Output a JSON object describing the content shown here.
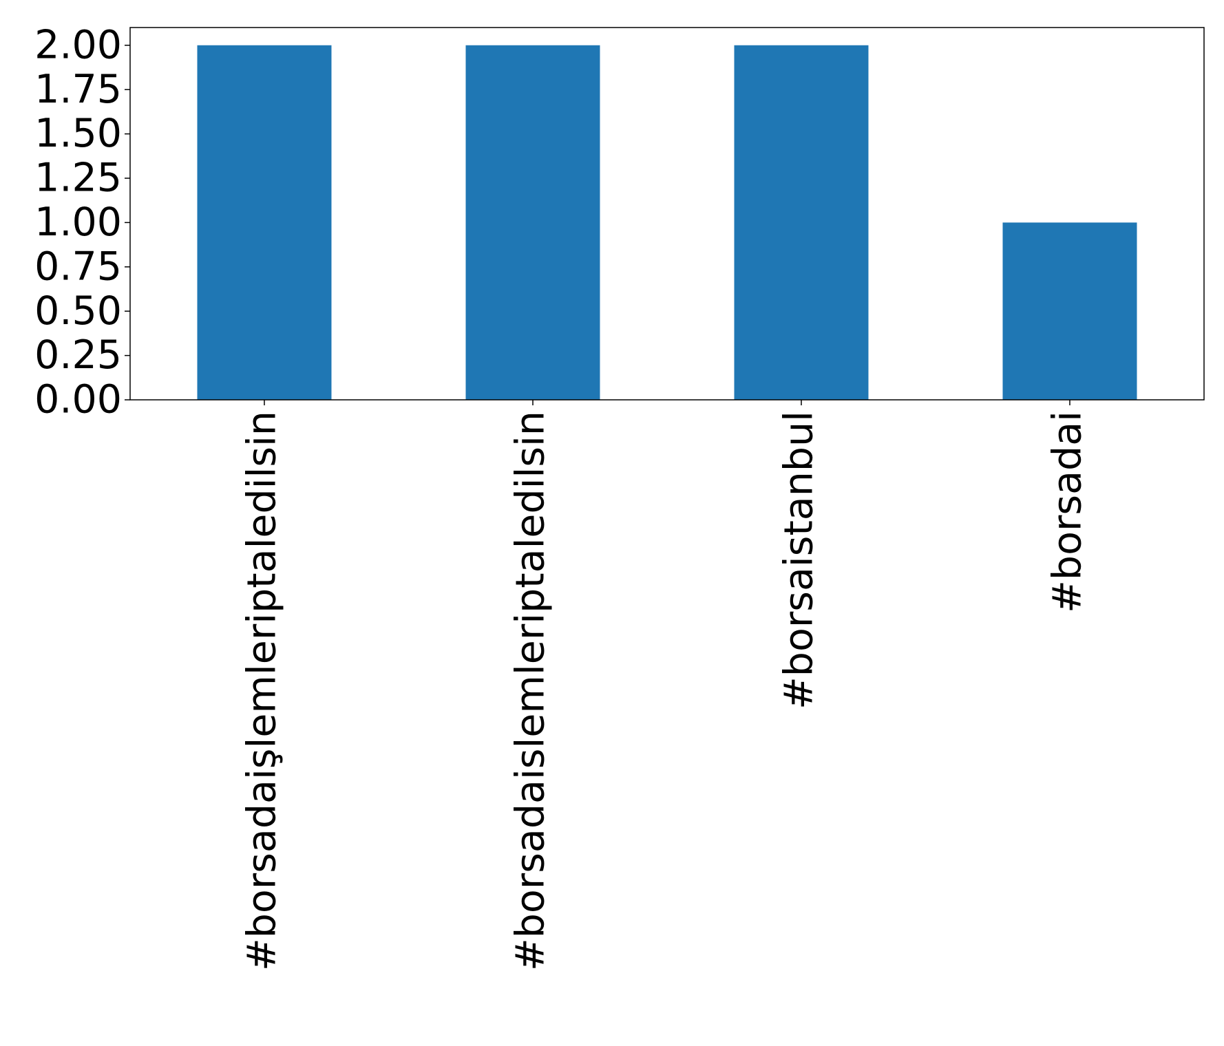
{
  "chart_data": {
    "type": "bar",
    "categories": [
      "#borsadaişlemleriptaledilsin",
      "#borsadaislemleriptaledilsin",
      "#borsaistanbul",
      "#borsadai"
    ],
    "values": [
      2,
      2,
      2,
      1
    ],
    "color": "#1f77b4",
    "ylim": [
      0,
      2.1
    ],
    "yticks": [
      {
        "value": 0,
        "label": "0.00"
      },
      {
        "value": 0.25,
        "label": "0.25"
      },
      {
        "value": 0.5,
        "label": "0.50"
      },
      {
        "value": 0.75,
        "label": "0.75"
      },
      {
        "value": 1,
        "label": "1.00"
      },
      {
        "value": 1.25,
        "label": "1.25"
      },
      {
        "value": 1.5,
        "label": "1.50"
      },
      {
        "value": 1.75,
        "label": "1.75"
      },
      {
        "value": 2,
        "label": "2.00"
      }
    ],
    "grid": false
  }
}
